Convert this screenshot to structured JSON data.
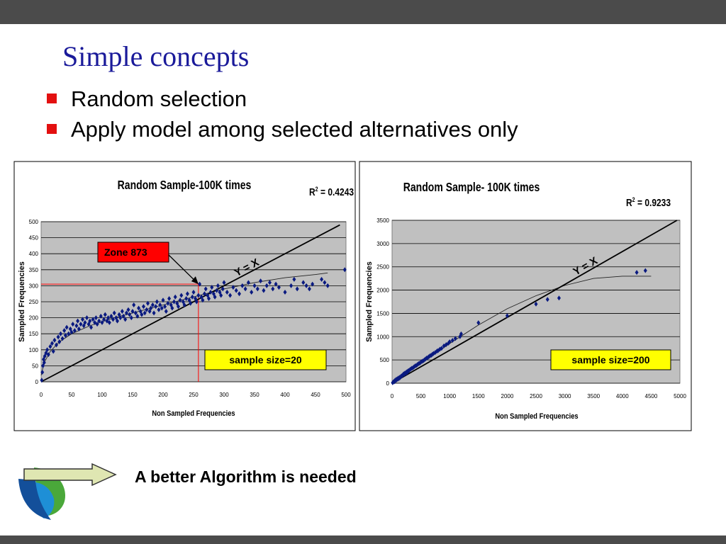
{
  "slide": {
    "title": "Simple concepts",
    "bullets": [
      "Random selection",
      "Apply model among selected alternatives only"
    ],
    "footer": "A better Algorithm is needed"
  },
  "icons": [
    "arrow-icon",
    "leaf-logo-icon",
    "square-bullet-icon"
  ],
  "colors": {
    "title": "#1a1a9a",
    "bullet": "#e31010",
    "points": "#0a1a80",
    "plot_bg": "#c0c0c0",
    "zone_box": "#ff0000",
    "sample_box": "#ffff00"
  },
  "chart_data": [
    {
      "type": "scatter",
      "title": "Random Sample-100K times",
      "r2_label": "R",
      "r2_value": "2",
      "r2_text": " = 0.4243",
      "xlabel": "Non Sampled Frequencies",
      "ylabel": "Sampled Frequencies",
      "xlim": [
        0,
        500
      ],
      "ylim": [
        0,
        500
      ],
      "xticks": [
        0,
        50,
        100,
        150,
        200,
        250,
        300,
        350,
        400,
        450,
        500
      ],
      "yticks": [
        0,
        50,
        100,
        150,
        200,
        250,
        300,
        350,
        400,
        450,
        500
      ],
      "grid": true,
      "line_label": "Y = X",
      "callout": "Zone 873",
      "callout_point": [
        258,
        305
      ],
      "sample_label": "sample size=20",
      "trend": [
        [
          0,
          20
        ],
        [
          5,
          60
        ],
        [
          15,
          95
        ],
        [
          30,
          125
        ],
        [
          50,
          150
        ],
        [
          80,
          175
        ],
        [
          120,
          200
        ],
        [
          160,
          220
        ],
        [
          200,
          240
        ],
        [
          250,
          265
        ],
        [
          300,
          290
        ],
        [
          350,
          310
        ],
        [
          400,
          325
        ],
        [
          450,
          335
        ],
        [
          470,
          340
        ]
      ],
      "points": [
        [
          1,
          5
        ],
        [
          2,
          30
        ],
        [
          3,
          50
        ],
        [
          4,
          70
        ],
        [
          5,
          60
        ],
        [
          6,
          80
        ],
        [
          8,
          90
        ],
        [
          10,
          100
        ],
        [
          12,
          85
        ],
        [
          15,
          110
        ],
        [
          18,
          120
        ],
        [
          20,
          95
        ],
        [
          22,
          130
        ],
        [
          25,
          115
        ],
        [
          28,
          140
        ],
        [
          30,
          125
        ],
        [
          32,
          150
        ],
        [
          35,
          135
        ],
        [
          38,
          160
        ],
        [
          40,
          145
        ],
        [
          42,
          170
        ],
        [
          45,
          150
        ],
        [
          48,
          165
        ],
        [
          50,
          155
        ],
        [
          52,
          180
        ],
        [
          55,
          160
        ],
        [
          58,
          175
        ],
        [
          60,
          190
        ],
        [
          62,
          165
        ],
        [
          65,
          180
        ],
        [
          68,
          195
        ],
        [
          70,
          175
        ],
        [
          72,
          185
        ],
        [
          75,
          200
        ],
        [
          78,
          180
        ],
        [
          80,
          190
        ],
        [
          82,
          170
        ],
        [
          85,
          195
        ],
        [
          88,
          185
        ],
        [
          90,
          200
        ],
        [
          92,
          180
        ],
        [
          95,
          190
        ],
        [
          98,
          205
        ],
        [
          100,
          185
        ],
        [
          103,
          195
        ],
        [
          105,
          210
        ],
        [
          108,
          190
        ],
        [
          110,
          200
        ],
        [
          112,
          185
        ],
        [
          115,
          205
        ],
        [
          118,
          195
        ],
        [
          120,
          215
        ],
        [
          123,
          200
        ],
        [
          125,
          190
        ],
        [
          128,
          210
        ],
        [
          130,
          200
        ],
        [
          133,
          220
        ],
        [
          135,
          205
        ],
        [
          138,
          195
        ],
        [
          140,
          215
        ],
        [
          143,
          225
        ],
        [
          145,
          210
        ],
        [
          148,
          200
        ],
        [
          150,
          220
        ],
        [
          152,
          240
        ],
        [
          155,
          215
        ],
        [
          158,
          205
        ],
        [
          160,
          230
        ],
        [
          163,
          220
        ],
        [
          165,
          210
        ],
        [
          168,
          235
        ],
        [
          170,
          215
        ],
        [
          173,
          225
        ],
        [
          175,
          245
        ],
        [
          178,
          220
        ],
        [
          180,
          230
        ],
        [
          183,
          240
        ],
        [
          185,
          215
        ],
        [
          188,
          235
        ],
        [
          190,
          250
        ],
        [
          193,
          225
        ],
        [
          195,
          240
        ],
        [
          198,
          230
        ],
        [
          200,
          255
        ],
        [
          203,
          235
        ],
        [
          205,
          220
        ],
        [
          208,
          245
        ],
        [
          210,
          260
        ],
        [
          213,
          240
        ],
        [
          215,
          230
        ],
        [
          218,
          250
        ],
        [
          220,
          265
        ],
        [
          223,
          245
        ],
        [
          225,
          235
        ],
        [
          228,
          255
        ],
        [
          230,
          270
        ],
        [
          233,
          250
        ],
        [
          235,
          240
        ],
        [
          238,
          260
        ],
        [
          240,
          275
        ],
        [
          243,
          255
        ],
        [
          245,
          245
        ],
        [
          248,
          265
        ],
        [
          250,
          280
        ],
        [
          253,
          260
        ],
        [
          255,
          250
        ],
        [
          258,
          270
        ],
        [
          260,
          305
        ],
        [
          263,
          265
        ],
        [
          265,
          255
        ],
        [
          268,
          275
        ],
        [
          270,
          290
        ],
        [
          273,
          270
        ],
        [
          275,
          260
        ],
        [
          278,
          280
        ],
        [
          280,
          295
        ],
        [
          283,
          275
        ],
        [
          285,
          265
        ],
        [
          288,
          285
        ],
        [
          290,
          300
        ],
        [
          293,
          280
        ],
        [
          295,
          270
        ],
        [
          298,
          290
        ],
        [
          300,
          310
        ],
        [
          305,
          280
        ],
        [
          310,
          270
        ],
        [
          315,
          295
        ],
        [
          320,
          285
        ],
        [
          325,
          275
        ],
        [
          330,
          300
        ],
        [
          335,
          290
        ],
        [
          340,
          310
        ],
        [
          345,
          280
        ],
        [
          350,
          300
        ],
        [
          355,
          290
        ],
        [
          360,
          315
        ],
        [
          365,
          285
        ],
        [
          370,
          300
        ],
        [
          375,
          310
        ],
        [
          380,
          290
        ],
        [
          385,
          305
        ],
        [
          390,
          295
        ],
        [
          400,
          280
        ],
        [
          410,
          300
        ],
        [
          415,
          320
        ],
        [
          420,
          290
        ],
        [
          430,
          310
        ],
        [
          435,
          300
        ],
        [
          440,
          290
        ],
        [
          445,
          305
        ],
        [
          460,
          320
        ],
        [
          465,
          310
        ],
        [
          470,
          300
        ],
        [
          498,
          350
        ]
      ]
    },
    {
      "type": "scatter",
      "title": "Random Sample- 100K times",
      "r2_label": "R",
      "r2_value": "2",
      "r2_text": " = 0.9233",
      "xlabel": "Non Sampled  Frequencies",
      "ylabel": "Sampled Frequencies",
      "xlim": [
        0,
        5000
      ],
      "ylim": [
        0,
        3500
      ],
      "xticks": [
        0,
        500,
        1000,
        1500,
        2000,
        2500,
        3000,
        3500,
        4000,
        4500,
        5000
      ],
      "yticks": [
        0,
        500,
        1000,
        1500,
        2000,
        2500,
        3000,
        3500
      ],
      "grid": true,
      "line_label": "Y = X",
      "sample_label": "sample size=200",
      "trend": [
        [
          0,
          0
        ],
        [
          500,
          420
        ],
        [
          1000,
          850
        ],
        [
          1500,
          1250
        ],
        [
          2000,
          1600
        ],
        [
          2500,
          1880
        ],
        [
          3000,
          2100
        ],
        [
          3500,
          2250
        ],
        [
          4000,
          2300
        ],
        [
          4500,
          2300
        ]
      ],
      "points": [
        [
          10,
          10
        ],
        [
          20,
          25
        ],
        [
          30,
          35
        ],
        [
          40,
          30
        ],
        [
          50,
          60
        ],
        [
          60,
          55
        ],
        [
          70,
          80
        ],
        [
          80,
          70
        ],
        [
          90,
          95
        ],
        [
          100,
          90
        ],
        [
          110,
          110
        ],
        [
          120,
          100
        ],
        [
          130,
          125
        ],
        [
          140,
          120
        ],
        [
          150,
          140
        ],
        [
          160,
          150
        ],
        [
          170,
          160
        ],
        [
          180,
          170
        ],
        [
          190,
          180
        ],
        [
          200,
          200
        ],
        [
          210,
          190
        ],
        [
          220,
          215
        ],
        [
          230,
          210
        ],
        [
          240,
          230
        ],
        [
          250,
          220
        ],
        [
          260,
          250
        ],
        [
          270,
          240
        ],
        [
          280,
          265
        ],
        [
          290,
          270
        ],
        [
          300,
          280
        ],
        [
          320,
          300
        ],
        [
          340,
          320
        ],
        [
          360,
          330
        ],
        [
          380,
          350
        ],
        [
          400,
          370
        ],
        [
          420,
          380
        ],
        [
          440,
          400
        ],
        [
          460,
          420
        ],
        [
          480,
          430
        ],
        [
          500,
          450
        ],
        [
          520,
          470
        ],
        [
          540,
          480
        ],
        [
          560,
          500
        ],
        [
          580,
          520
        ],
        [
          600,
          540
        ],
        [
          620,
          550
        ],
        [
          640,
          570
        ],
        [
          660,
          590
        ],
        [
          680,
          600
        ],
        [
          700,
          620
        ],
        [
          720,
          640
        ],
        [
          750,
          660
        ],
        [
          780,
          690
        ],
        [
          800,
          700
        ],
        [
          830,
          730
        ],
        [
          860,
          750
        ],
        [
          900,
          800
        ],
        [
          940,
          830
        ],
        [
          980,
          860
        ],
        [
          1000,
          890
        ],
        [
          1050,
          920
        ],
        [
          1100,
          960
        ],
        [
          1180,
          1000
        ],
        [
          1200,
          1060
        ],
        [
          1500,
          1300
        ],
        [
          2000,
          1450
        ],
        [
          2500,
          1700
        ],
        [
          2700,
          1800
        ],
        [
          2900,
          1830
        ],
        [
          4250,
          2380
        ],
        [
          4400,
          2420
        ]
      ]
    }
  ]
}
